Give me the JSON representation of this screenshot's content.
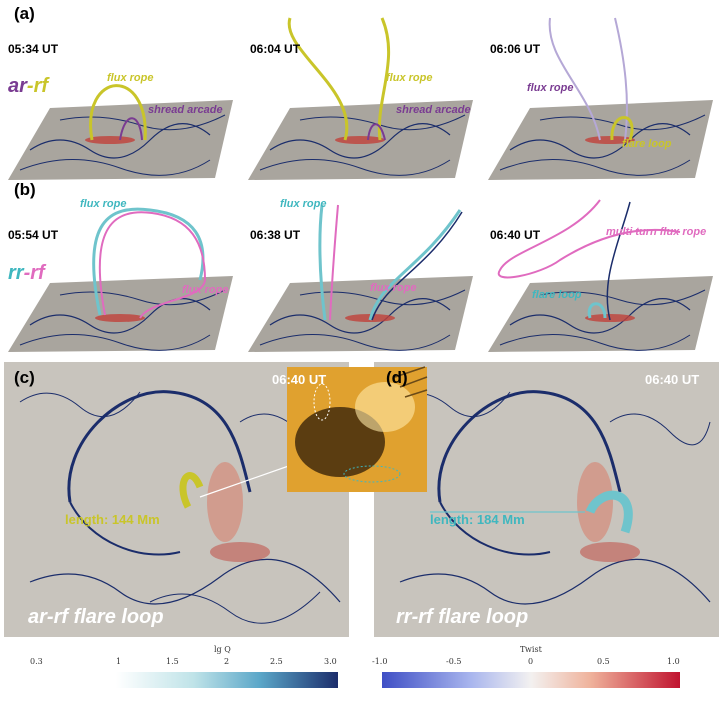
{
  "panels": {
    "a": {
      "label": "(a)",
      "tag": {
        "part1": "ar",
        "dash": "-",
        "part2": "rf"
      },
      "frames": [
        {
          "time": "05:34 UT",
          "labels": [
            "flux rope",
            "shread arcade"
          ]
        },
        {
          "time": "06:04 UT",
          "labels": [
            "flux rope",
            "shread arcade"
          ]
        },
        {
          "time": "06:06 UT",
          "labels": [
            "flux rope",
            "flare loop"
          ]
        }
      ]
    },
    "b": {
      "label": "(b)",
      "tag": {
        "part1": "rr",
        "dash": "-",
        "part2": "rf"
      },
      "frames": [
        {
          "time": "05:54 UT",
          "labels": [
            "flux rope",
            "flux rope"
          ]
        },
        {
          "time": "06:38 UT",
          "labels": [
            "flux rope",
            "flux rope"
          ]
        },
        {
          "time": "06:40 UT",
          "labels": [
            "multi turn flux rope",
            "flare loop"
          ]
        }
      ]
    },
    "c": {
      "label": "(c)",
      "time": "06:40 UT",
      "length": "length: 144 Mm",
      "title": "ar-rf flare loop"
    },
    "d": {
      "label": "(d)",
      "time": "06:40 UT",
      "length": "length: 184 Mm",
      "title": "rr-rf flare loop"
    }
  },
  "colorbars": {
    "lgq": {
      "title": "lg Q",
      "ticks": [
        "0.3",
        "1",
        "1.5",
        "2",
        "2.5",
        "3.0"
      ]
    },
    "twist": {
      "title": "Twist",
      "ticks": [
        "-1.0",
        "-0.5",
        "0",
        "0.5",
        "1.0"
      ]
    }
  },
  "colors": {
    "yellow_line": "#c9c52a",
    "purple_line": "#7a3c92",
    "pink_line": "#e06bbf",
    "cyan_line": "#3fb7bf",
    "plane": "#a9a59e",
    "map_bg": "#c8c4bd"
  }
}
